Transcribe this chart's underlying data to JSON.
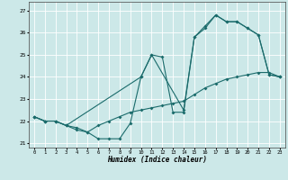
{
  "xlabel": "Humidex (Indice chaleur)",
  "background_color": "#cce8e8",
  "grid_color": "#ffffff",
  "line_color": "#1a6b6b",
  "xlim": [
    -0.5,
    23.5
  ],
  "ylim": [
    20.8,
    27.4
  ],
  "xticks": [
    0,
    1,
    2,
    3,
    4,
    5,
    6,
    7,
    8,
    9,
    10,
    11,
    12,
    13,
    14,
    15,
    16,
    17,
    18,
    19,
    20,
    21,
    22,
    23
  ],
  "yticks": [
    21,
    22,
    23,
    24,
    25,
    26,
    27
  ],
  "line1_x": [
    0,
    1,
    2,
    3,
    4,
    5,
    6,
    7,
    8,
    9,
    10,
    11,
    12,
    13,
    14,
    15,
    16,
    17,
    18,
    19,
    20,
    21,
    22,
    23
  ],
  "line1_y": [
    22.2,
    22.0,
    22.0,
    21.8,
    21.7,
    21.5,
    21.2,
    21.2,
    21.2,
    21.9,
    24.0,
    25.0,
    24.9,
    22.4,
    22.4,
    25.8,
    26.2,
    26.8,
    26.5,
    26.5,
    26.2,
    25.9,
    24.1,
    24.0
  ],
  "line2_x": [
    0,
    1,
    2,
    3,
    4,
    5,
    6,
    7,
    8,
    9,
    10,
    11,
    12,
    13,
    14,
    15,
    16,
    17,
    18,
    19,
    20,
    21,
    22,
    23
  ],
  "line2_y": [
    22.2,
    22.0,
    22.0,
    21.8,
    21.6,
    21.5,
    21.8,
    22.0,
    22.2,
    22.4,
    22.5,
    22.6,
    22.7,
    22.8,
    22.9,
    23.2,
    23.5,
    23.7,
    23.9,
    24.0,
    24.1,
    24.2,
    24.2,
    24.0
  ],
  "line3_x": [
    0,
    1,
    2,
    3,
    10,
    11,
    14,
    15,
    16,
    17,
    18,
    19,
    20,
    21,
    22,
    23
  ],
  "line3_y": [
    22.2,
    22.0,
    22.0,
    21.8,
    24.0,
    25.0,
    22.5,
    25.8,
    26.3,
    26.8,
    26.5,
    26.5,
    26.2,
    25.9,
    24.1,
    24.0
  ]
}
